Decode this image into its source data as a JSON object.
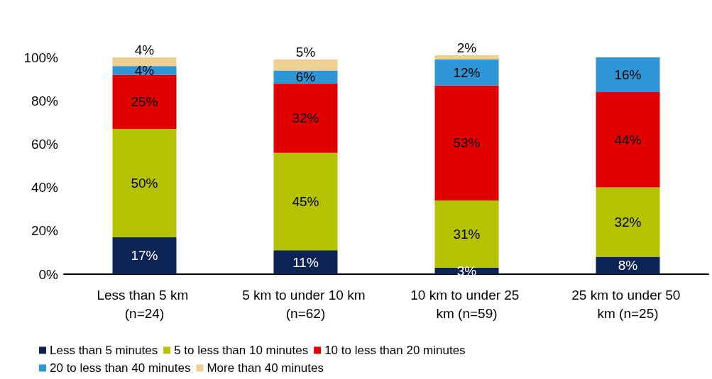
{
  "chart_data": {
    "type": "bar",
    "stacked": true,
    "categories": [
      "Less than 5 km (n=24)",
      "5 km to under 10 km (n=62)",
      "10 km to under 25 km (n=59)",
      "25 km to under 50 km (n=25)"
    ],
    "series": [
      {
        "name": "Less than 5 minutes",
        "color": "#0c2356",
        "values": [
          17,
          11,
          3,
          8
        ],
        "value_labels": [
          "17%",
          "11%",
          "3%",
          "8%"
        ]
      },
      {
        "name": "5 to less than 10 minutes",
        "color": "#b5c200",
        "values": [
          50,
          45,
          31,
          32
        ],
        "value_labels": [
          "50%",
          "45%",
          "31%",
          "32%"
        ]
      },
      {
        "name": "10 to less than 20 minutes",
        "color": "#e00000",
        "values": [
          25,
          32,
          53,
          44
        ],
        "value_labels": [
          "25%",
          "32%",
          "53%",
          "44%"
        ]
      },
      {
        "name": "20 to less than 40 minutes",
        "color": "#2e96d6",
        "values": [
          4,
          6,
          12,
          16
        ],
        "value_labels": [
          "4%",
          "6%",
          "12%",
          "16%"
        ]
      },
      {
        "name": "More than 40 minutes",
        "color": "#f0d090",
        "values": [
          4,
          5,
          2,
          null
        ],
        "value_labels": [
          "4%",
          "5%",
          "2%",
          null
        ]
      }
    ],
    "ylim": [
      0,
      101
    ],
    "yticks": [
      {
        "value": 0,
        "label": "0%"
      },
      {
        "value": 20,
        "label": "20%"
      },
      {
        "value": 40,
        "label": "40%"
      },
      {
        "value": 60,
        "label": "60%"
      },
      {
        "value": 80,
        "label": "80%"
      },
      {
        "value": 100,
        "label": "100%"
      }
    ],
    "grid": false,
    "legend": "bottom"
  }
}
